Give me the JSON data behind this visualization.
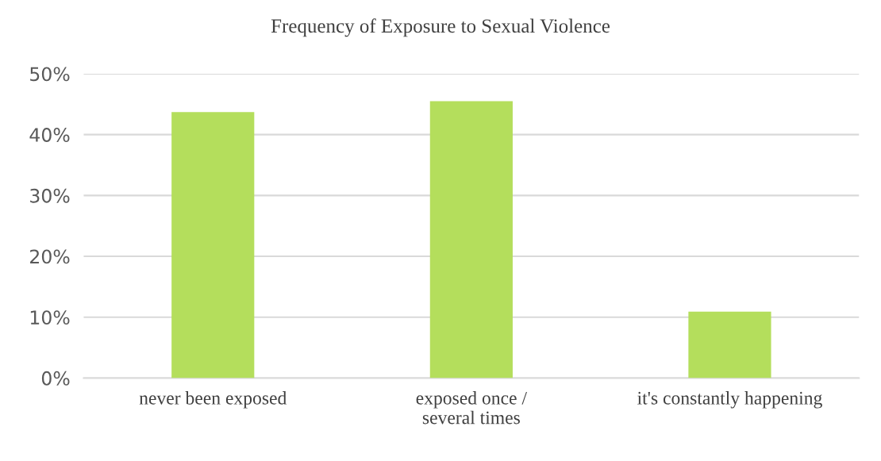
{
  "chart_data": {
    "type": "bar",
    "title": "Frequency of Exposure to Sexual Violence",
    "categories": [
      "never been exposed",
      "exposed once /\nseveral times",
      "it's constantly happening"
    ],
    "values": [
      43.7,
      45.5,
      10.9
    ],
    "color": "#b4de5c",
    "ylim": [
      0,
      50
    ],
    "yticks": [
      {
        "value": 0,
        "label": "0%"
      },
      {
        "value": 10,
        "label": "10%"
      },
      {
        "value": 20,
        "label": "20%"
      },
      {
        "value": 30,
        "label": "30%"
      },
      {
        "value": 40,
        "label": "40%"
      },
      {
        "value": 50,
        "label": "50%"
      }
    ],
    "grid": "y"
  }
}
